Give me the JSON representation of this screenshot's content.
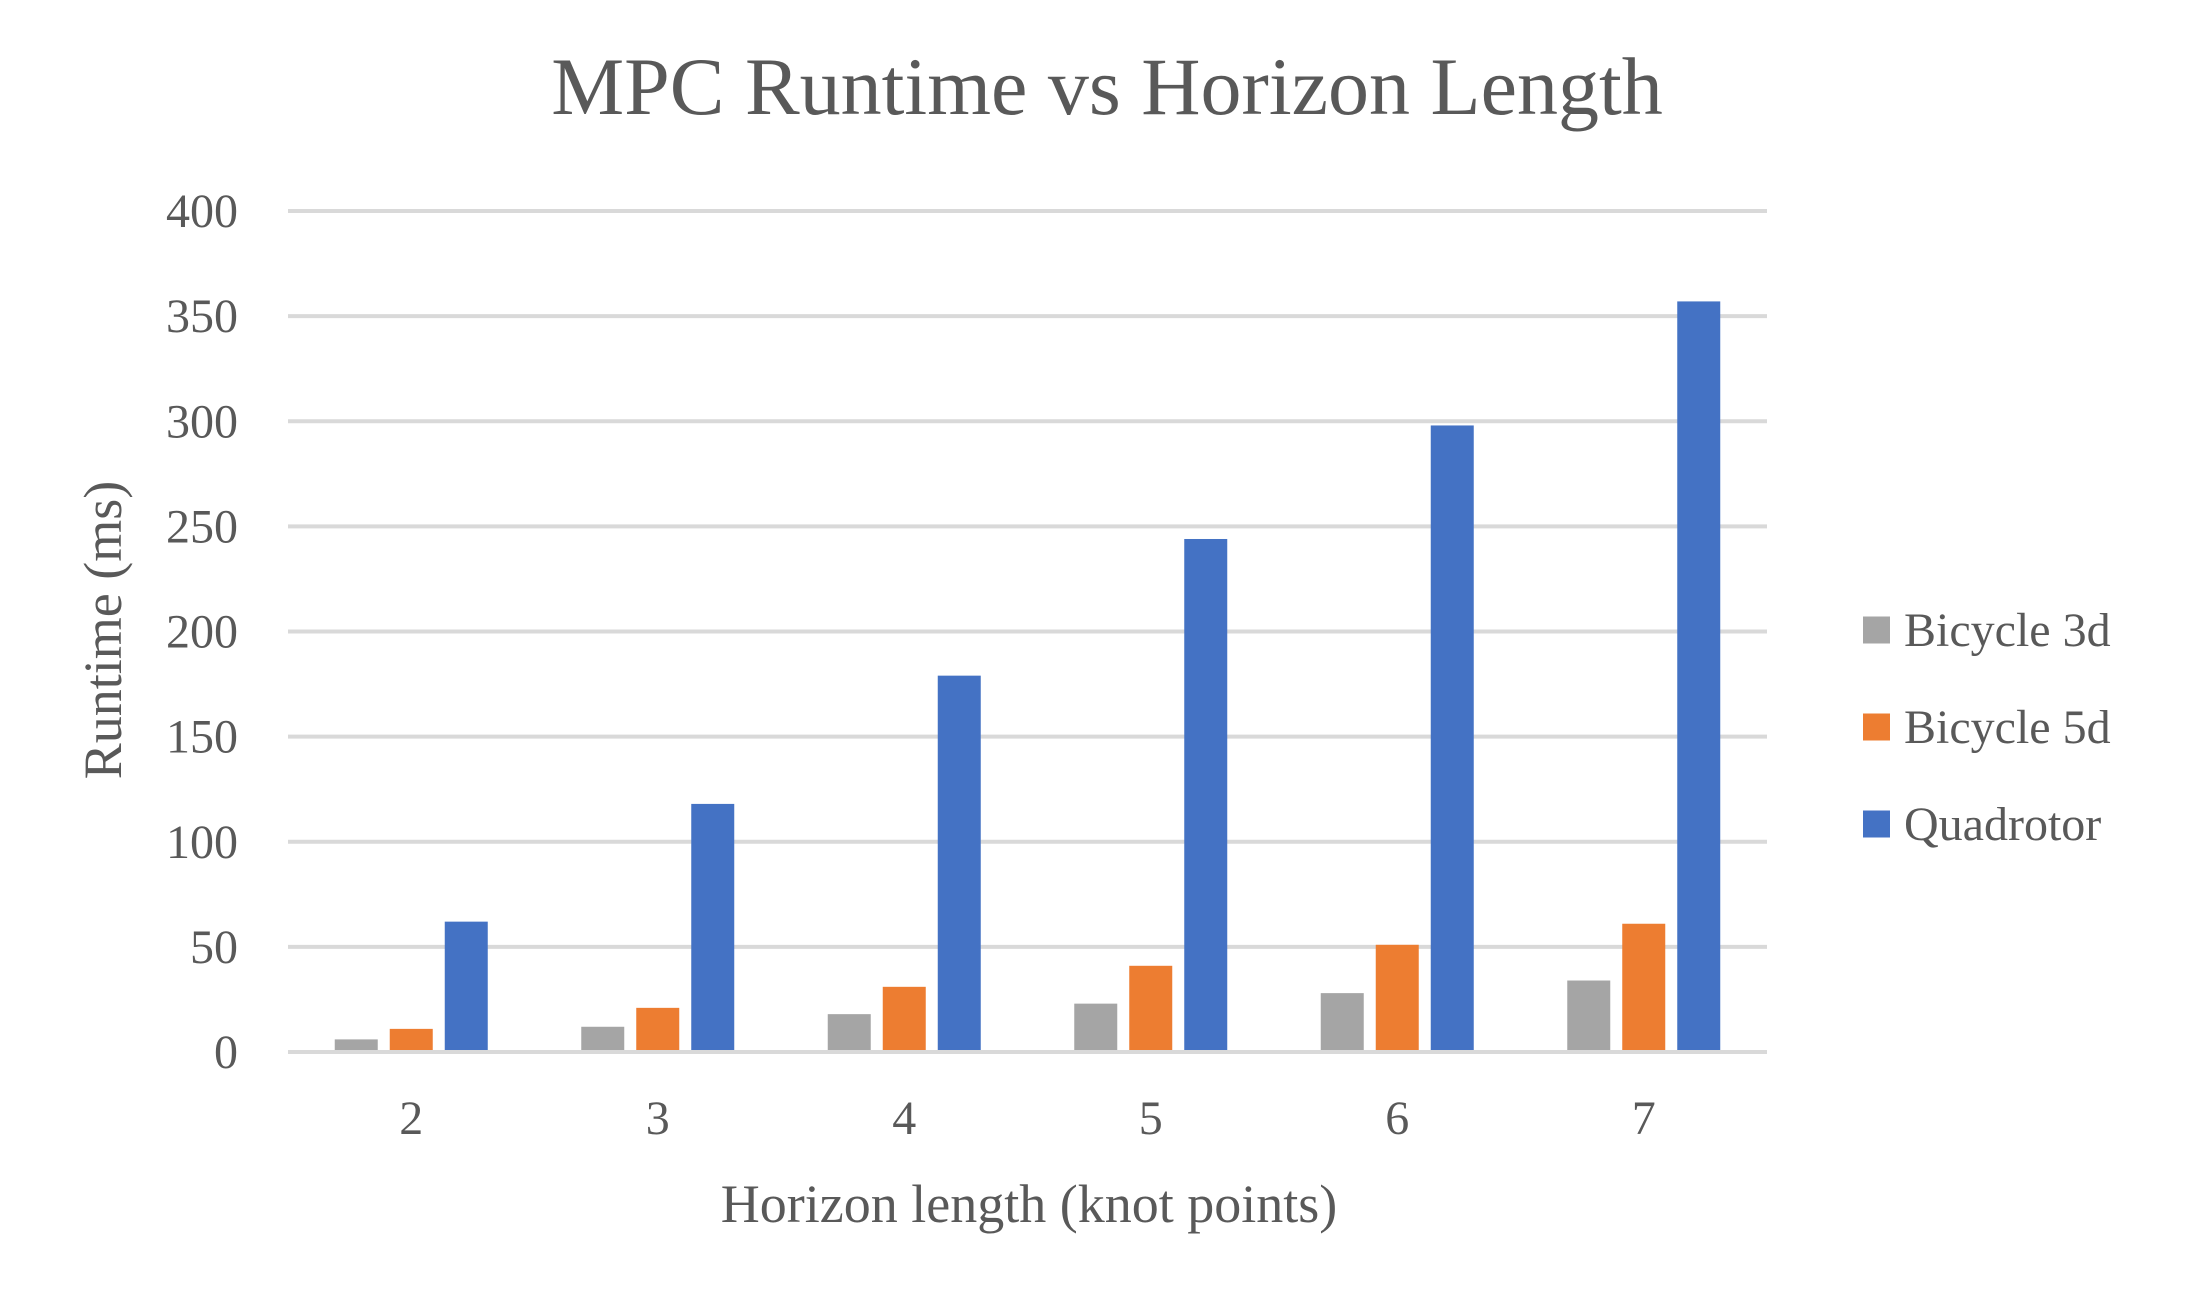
{
  "chart_data": {
    "type": "bar",
    "title": "MPC Runtime vs Horizon Length",
    "xlabel": "Horizon length (knot points)",
    "ylabel": "Runtime (ms)",
    "categories": [
      "2",
      "3",
      "4",
      "5",
      "6",
      "7"
    ],
    "ylim": [
      0,
      400
    ],
    "yticks": [
      "0",
      "50",
      "100",
      "150",
      "200",
      "250",
      "300",
      "350",
      "400"
    ],
    "grid": true,
    "legend_position": "right",
    "series": [
      {
        "name": "Bicycle 3d",
        "color": "#a5a5a5",
        "values": [
          6,
          12,
          18,
          23,
          28,
          34
        ]
      },
      {
        "name": "Bicycle 5d",
        "color": "#ed7d31",
        "values": [
          11,
          21,
          31,
          41,
          51,
          61
        ]
      },
      {
        "name": "Quadrotor",
        "color": "#4472c4",
        "values": [
          62,
          118,
          179,
          244,
          298,
          357
        ]
      }
    ]
  }
}
